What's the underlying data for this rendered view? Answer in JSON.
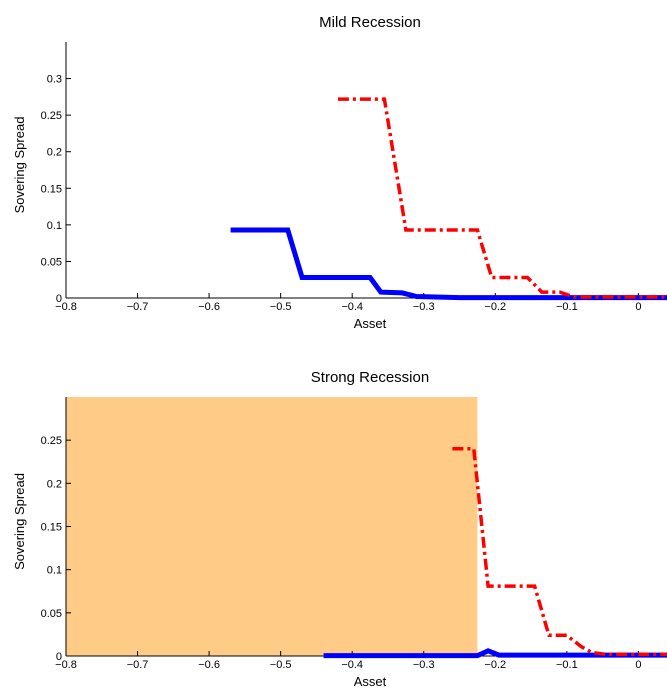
{
  "chart_data": [
    {
      "type": "line",
      "title": "Mild Recession",
      "xlabel": "Asset",
      "ylabel": "Sovering Spread",
      "xlim": [
        -0.8,
        0.04
      ],
      "ylim": [
        0,
        0.35
      ],
      "xticks": [
        -0.8,
        -0.7,
        -0.6,
        -0.5,
        -0.4,
        -0.3,
        -0.2,
        -0.1,
        0
      ],
      "xtick_labels": [
        "−0.8",
        "−0.7",
        "−0.6",
        "−0.5",
        "−0.4",
        "−0.3",
        "−0.2",
        "−0.1",
        "0"
      ],
      "yticks": [
        0,
        0.05,
        0.1,
        0.15,
        0.2,
        0.25,
        0.3
      ],
      "ytick_labels": [
        "0",
        "0.05",
        "0.1",
        "0.15",
        "0.2",
        "0.25",
        "0.3"
      ],
      "shaded_region": null,
      "series": [
        {
          "style": "solid",
          "color": "#0000ff",
          "x": [
            -0.57,
            -0.49,
            -0.47,
            -0.375,
            -0.36,
            -0.33,
            -0.31,
            -0.25,
            0.04
          ],
          "y": [
            0.093,
            0.093,
            0.028,
            0.028,
            0.008,
            0.007,
            0.002,
            0.0005,
            0.0005
          ]
        },
        {
          "style": "dashdot",
          "color": "#ff0000",
          "x": [
            -0.42,
            -0.355,
            -0.325,
            -0.225,
            -0.205,
            -0.155,
            -0.135,
            -0.11,
            -0.09,
            0.04
          ],
          "y": [
            0.272,
            0.272,
            0.093,
            0.093,
            0.028,
            0.028,
            0.008,
            0.008,
            0.0015,
            0.0015
          ]
        }
      ]
    },
    {
      "type": "line",
      "title": "Strong Recession",
      "xlabel": "Asset",
      "ylabel": "Sovering Spread",
      "xlim": [
        -0.8,
        0.04
      ],
      "ylim": [
        0,
        0.3
      ],
      "xticks": [
        -0.8,
        -0.7,
        -0.6,
        -0.5,
        -0.4,
        -0.3,
        -0.2,
        -0.1,
        0
      ],
      "xtick_labels": [
        "−0.8",
        "−0.7",
        "−0.6",
        "−0.5",
        "−0.4",
        "−0.3",
        "−0.2",
        "−0.1",
        "0"
      ],
      "yticks": [
        0,
        0.05,
        0.1,
        0.15,
        0.2,
        0.25
      ],
      "ytick_labels": [
        "0",
        "0.05",
        "0.1",
        "0.15",
        "0.2",
        "0.25"
      ],
      "shaded_region": {
        "x": [
          -0.8,
          -0.225
        ],
        "color": "#ffcc88"
      },
      "series": [
        {
          "style": "solid",
          "color": "#0000ff",
          "x": [
            -0.44,
            -0.225,
            -0.21,
            -0.195,
            0.04
          ],
          "y": [
            0.0005,
            0.0005,
            0.006,
            0.001,
            0.001
          ]
        },
        {
          "style": "dashdot",
          "color": "#ff0000",
          "x": [
            -0.26,
            -0.23,
            -0.21,
            -0.185,
            -0.145,
            -0.125,
            -0.1,
            -0.08,
            -0.065,
            -0.045,
            0.04
          ],
          "y": [
            0.24,
            0.24,
            0.081,
            0.081,
            0.081,
            0.024,
            0.024,
            0.011,
            0.004,
            0.002,
            0.002
          ]
        }
      ]
    }
  ]
}
